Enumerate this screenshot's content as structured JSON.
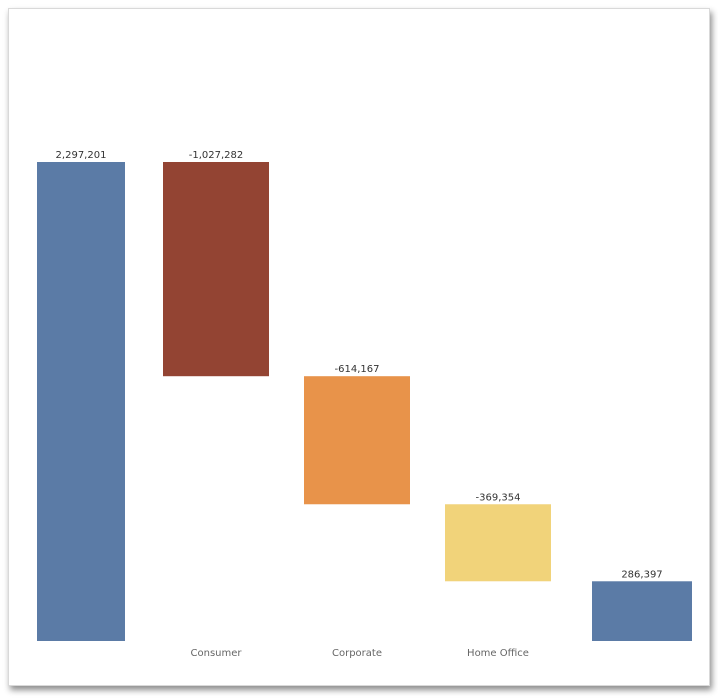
{
  "chart_data": {
    "type": "bar",
    "subtype": "waterfall",
    "title": "",
    "xlabel": "",
    "ylabel": "",
    "ylim": [
      0,
      2297201
    ],
    "grid": false,
    "legend": "none",
    "steps": [
      {
        "category": "",
        "value": 2297201,
        "label": "2,297,201",
        "kind": "total",
        "color": "#5b7ba6"
      },
      {
        "category": "Consumer",
        "value": -1027282,
        "label": "-1,027,282",
        "kind": "delta",
        "color": "#934433"
      },
      {
        "category": "Corporate",
        "value": -614167,
        "label": "-614,167",
        "kind": "delta",
        "color": "#e8934a"
      },
      {
        "category": "Home Office",
        "value": -369354,
        "label": "-369,354",
        "kind": "delta",
        "color": "#f1d37a"
      },
      {
        "category": "",
        "value": 286397,
        "label": "286,397",
        "kind": "total",
        "color": "#5b7ba6"
      }
    ]
  }
}
